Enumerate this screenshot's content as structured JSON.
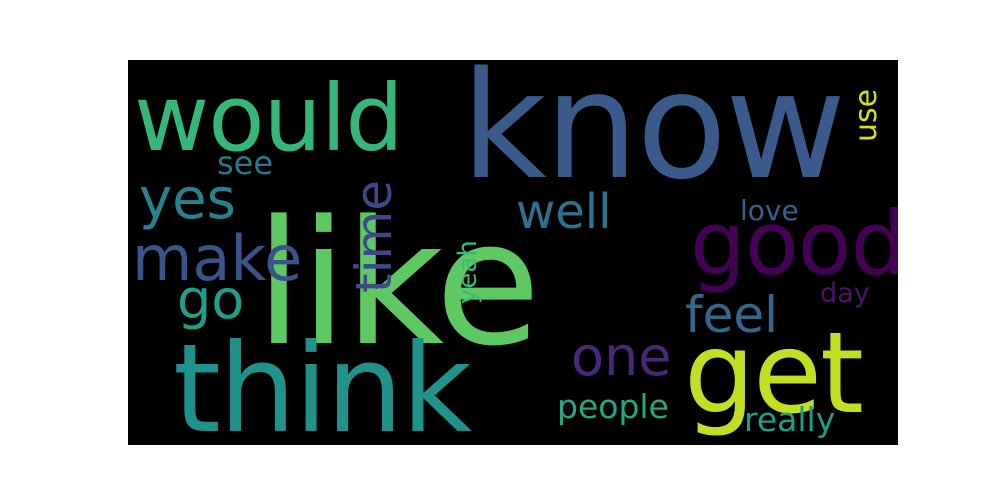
{
  "words": [
    {
      "text": "like",
      "color": "#5ec962"
    },
    {
      "text": "know",
      "color": "#3b5a8c"
    },
    {
      "text": "think",
      "color": "#21918c"
    },
    {
      "text": "would",
      "color": "#35b779"
    },
    {
      "text": "get",
      "color": "#c2df23"
    },
    {
      "text": "good",
      "color": "#440154"
    },
    {
      "text": "make",
      "color": "#3b528b"
    },
    {
      "text": "one",
      "color": "#482878"
    },
    {
      "text": "feel",
      "color": "#31688e"
    },
    {
      "text": "well",
      "color": "#2c728e"
    },
    {
      "text": "time",
      "color": "#3e4989"
    },
    {
      "text": "yes",
      "color": "#26828e"
    },
    {
      "text": "go",
      "color": "#1f9e89"
    },
    {
      "text": "people",
      "color": "#22a884"
    },
    {
      "text": "really",
      "color": "#1f9e89"
    },
    {
      "text": "see",
      "color": "#2a788e"
    },
    {
      "text": "love",
      "color": "#34618d"
    },
    {
      "text": "use",
      "color": "#d5e21a"
    },
    {
      "text": "yeah",
      "color": "#3aba76"
    },
    {
      "text": "day",
      "color": "#481668"
    }
  ]
}
